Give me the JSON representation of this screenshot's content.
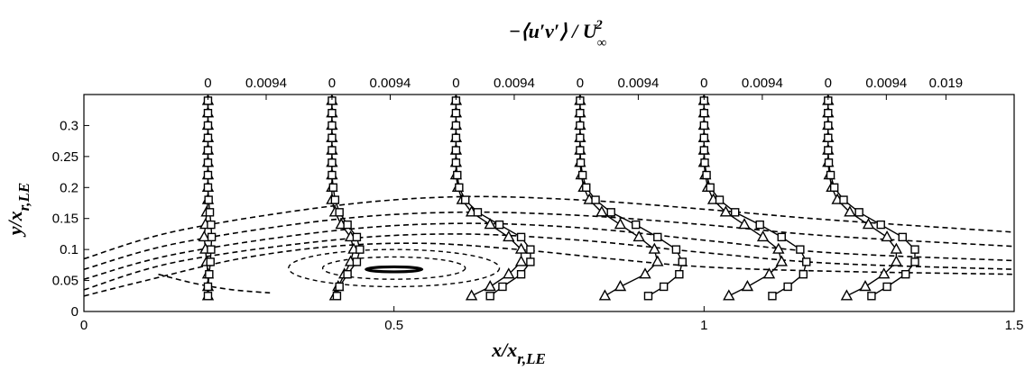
{
  "chart_data": {
    "type": "line",
    "title_top": "−⟨u′v′⟩ / U∞²",
    "top_axis": {
      "label_parts": [
        "−⟨",
        "u′v′",
        "⟩ / ",
        "U",
        "∞",
        "2"
      ],
      "tick_values": [
        0.2,
        0.2939,
        0.4,
        0.4939,
        0.6,
        0.6939,
        0.8,
        0.8939,
        1.0,
        1.0939,
        1.2,
        1.2939,
        1.39
      ],
      "tick_labels": [
        "0",
        "0.0094",
        "0",
        "0.0094",
        "0",
        "0.0094",
        "0",
        "0.0094",
        "0",
        "0.0094",
        "0",
        "0.0094",
        "0.019"
      ]
    },
    "xlabel_parts": [
      "x/x",
      "r,LE"
    ],
    "ylabel_parts": [
      "y/x",
      "r,LE"
    ],
    "xlim": [
      0,
      1.5
    ],
    "ylim": [
      0,
      0.35
    ],
    "xticks": [
      0,
      0.5,
      1,
      1.5
    ],
    "xtick_labels": [
      "0",
      "0.5",
      "1",
      "1.5"
    ],
    "yticks": [
      0,
      0.05,
      0.1,
      0.15,
      0.2,
      0.25,
      0.3
    ],
    "ytick_labels": [
      "0",
      "0.05",
      "0.1",
      "0.15",
      "0.2",
      "0.25",
      "0.3"
    ],
    "grid": false,
    "colors": {
      "line": "#000000",
      "background": "#ffffff"
    },
    "profile_baselines": [
      0.2,
      0.4,
      0.6,
      0.8,
      1.0,
      1.2
    ],
    "y_stations": [
      0.025,
      0.04,
      0.06,
      0.08,
      0.1,
      0.12,
      0.14,
      0.16,
      0.18,
      0.2,
      0.22,
      0.24,
      0.26,
      0.28,
      0.3,
      0.32,
      0.34
    ],
    "profiles": [
      {
        "x0": 0.2,
        "triangle": [
          0.2,
          0.2,
          0.2,
          0.198,
          0.196,
          0.194,
          0.196,
          0.198,
          0.2,
          0.2,
          0.2,
          0.2,
          0.2,
          0.2,
          0.2,
          0.2,
          0.2
        ],
        "square": [
          0.2,
          0.2,
          0.202,
          0.204,
          0.205,
          0.206,
          0.205,
          0.203,
          0.201,
          0.2,
          0.2,
          0.2,
          0.2,
          0.2,
          0.2,
          0.2,
          0.2
        ]
      },
      {
        "x0": 0.4,
        "triangle": [
          0.405,
          0.41,
          0.42,
          0.43,
          0.435,
          0.43,
          0.415,
          0.405,
          0.4,
          0.4,
          0.4,
          0.4,
          0.4,
          0.4,
          0.4,
          0.4,
          0.4
        ],
        "square": [
          0.408,
          0.412,
          0.425,
          0.44,
          0.445,
          0.44,
          0.425,
          0.412,
          0.405,
          0.402,
          0.4,
          0.4,
          0.4,
          0.4,
          0.4,
          0.4,
          0.4
        ]
      },
      {
        "x0": 0.6,
        "triangle": [
          0.625,
          0.655,
          0.685,
          0.705,
          0.705,
          0.685,
          0.655,
          0.625,
          0.61,
          0.603,
          0.6,
          0.6,
          0.6,
          0.6,
          0.6,
          0.6,
          0.6
        ],
        "square": [
          0.655,
          0.675,
          0.705,
          0.72,
          0.72,
          0.705,
          0.67,
          0.635,
          0.615,
          0.605,
          0.602,
          0.6,
          0.6,
          0.6,
          0.6,
          0.6,
          0.6
        ]
      },
      {
        "x0": 0.8,
        "triangle": [
          0.84,
          0.865,
          0.905,
          0.925,
          0.92,
          0.895,
          0.865,
          0.835,
          0.815,
          0.806,
          0.802,
          0.8,
          0.8,
          0.8,
          0.8,
          0.8,
          0.8
        ],
        "square": [
          0.91,
          0.935,
          0.96,
          0.965,
          0.955,
          0.925,
          0.89,
          0.85,
          0.825,
          0.81,
          0.804,
          0.801,
          0.8,
          0.8,
          0.8,
          0.8,
          0.8
        ]
      },
      {
        "x0": 1.0,
        "triangle": [
          1.04,
          1.07,
          1.105,
          1.125,
          1.12,
          1.095,
          1.065,
          1.035,
          1.015,
          1.006,
          1.002,
          1.0,
          1.0,
          1.0,
          1.0,
          1.0,
          1.0
        ],
        "square": [
          1.11,
          1.135,
          1.16,
          1.165,
          1.155,
          1.125,
          1.09,
          1.05,
          1.025,
          1.01,
          1.004,
          1.001,
          1.0,
          1.0,
          1.0,
          1.0,
          1.0
        ]
      },
      {
        "x0": 1.2,
        "triangle": [
          1.23,
          1.26,
          1.29,
          1.31,
          1.31,
          1.295,
          1.265,
          1.235,
          1.215,
          1.206,
          1.202,
          1.2,
          1.2,
          1.2,
          1.2,
          1.2,
          1.2
        ],
        "square": [
          1.27,
          1.295,
          1.325,
          1.34,
          1.34,
          1.32,
          1.285,
          1.25,
          1.225,
          1.21,
          1.204,
          1.201,
          1.2,
          1.2,
          1.2,
          1.2,
          1.2
        ]
      }
    ],
    "dashed_contours": [
      [
        [
          0,
          0.085
        ],
        [
          0.15,
          0.13
        ],
        [
          0.4,
          0.17
        ],
        [
          0.6,
          0.185
        ],
        [
          0.8,
          0.18
        ],
        [
          1.0,
          0.165
        ],
        [
          1.2,
          0.148
        ],
        [
          1.5,
          0.128
        ]
      ],
      [
        [
          0,
          0.068
        ],
        [
          0.15,
          0.11
        ],
        [
          0.4,
          0.148
        ],
        [
          0.6,
          0.16
        ],
        [
          0.8,
          0.155
        ],
        [
          1.0,
          0.14
        ],
        [
          1.2,
          0.122
        ],
        [
          1.5,
          0.105
        ]
      ],
      [
        [
          0,
          0.052
        ],
        [
          0.15,
          0.093
        ],
        [
          0.4,
          0.13
        ],
        [
          0.6,
          0.142
        ],
        [
          0.8,
          0.135
        ],
        [
          1.0,
          0.115
        ],
        [
          1.2,
          0.095
        ],
        [
          1.5,
          0.082
        ]
      ],
      [
        [
          0,
          0.035
        ],
        [
          0.15,
          0.08
        ],
        [
          0.4,
          0.115
        ],
        [
          0.6,
          0.125
        ],
        [
          0.8,
          0.115
        ],
        [
          1.0,
          0.095
        ],
        [
          1.2,
          0.078
        ],
        [
          1.5,
          0.068
        ]
      ],
      [
        [
          0,
          0.025
        ],
        [
          0.1,
          0.05
        ],
        [
          0.25,
          0.085
        ],
        [
          0.4,
          0.105
        ],
        [
          0.55,
          0.11
        ],
        [
          0.7,
          0.1
        ],
        [
          0.85,
          0.085
        ],
        [
          1.0,
          0.072
        ],
        [
          1.2,
          0.065
        ],
        [
          1.5,
          0.06
        ]
      ]
    ],
    "dashed_open_lower": [
      [
        0.12,
        0.06
      ],
      [
        0.18,
        0.045
      ],
      [
        0.24,
        0.035
      ],
      [
        0.3,
        0.03
      ]
    ],
    "inner_loops": [
      {
        "cx": 0.5,
        "cy": 0.07,
        "rx": 0.17,
        "ry": 0.03,
        "dashed": true
      },
      {
        "cx": 0.5,
        "cy": 0.07,
        "rx": 0.115,
        "ry": 0.018,
        "dashed": true
      },
      {
        "cx": 0.5,
        "cy": 0.068,
        "rx": 0.045,
        "ry": 0.004,
        "dashed": false
      }
    ]
  }
}
